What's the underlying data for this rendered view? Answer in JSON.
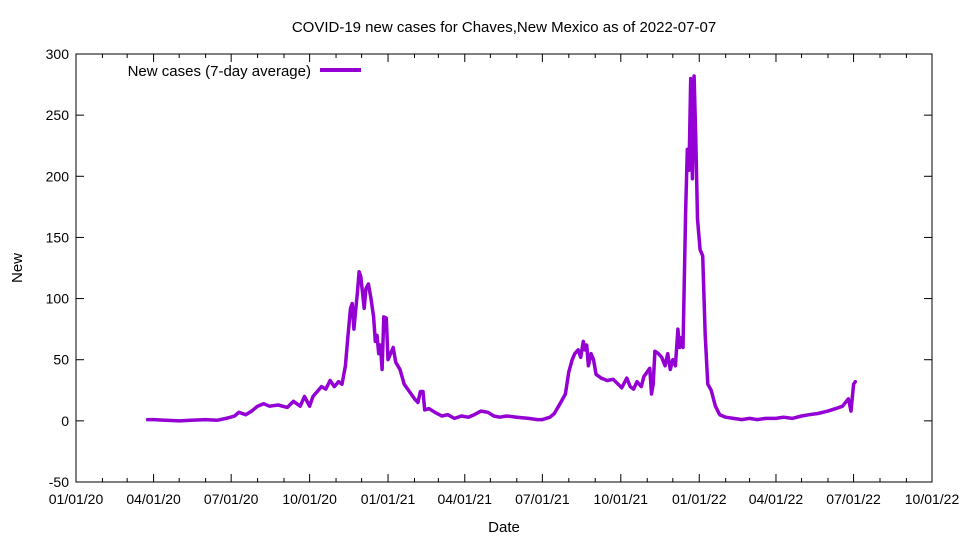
{
  "chart_data": {
    "type": "line",
    "title": "COVID-19 new cases for Chaves,New Mexico as of 2022-07-07",
    "xlabel": "Date",
    "ylabel": "New",
    "xlim": [
      "2020-01-01",
      "2022-10-01"
    ],
    "ylim": [
      -50,
      300
    ],
    "y_ticks": [
      -50,
      0,
      50,
      100,
      150,
      200,
      250,
      300
    ],
    "x_ticks": [
      {
        "date": "2020-01-01",
        "label": "01/01/20"
      },
      {
        "date": "2020-04-01",
        "label": "04/01/20"
      },
      {
        "date": "2020-07-01",
        "label": "07/01/20"
      },
      {
        "date": "2020-10-01",
        "label": "10/01/20"
      },
      {
        "date": "2021-01-01",
        "label": "01/01/21"
      },
      {
        "date": "2021-04-01",
        "label": "04/01/21"
      },
      {
        "date": "2021-07-01",
        "label": "07/01/21"
      },
      {
        "date": "2021-10-01",
        "label": "10/01/21"
      },
      {
        "date": "2022-01-01",
        "label": "01/01/22"
      },
      {
        "date": "2022-04-01",
        "label": "04/01/22"
      },
      {
        "date": "2022-07-01",
        "label": "07/01/22"
      },
      {
        "date": "2022-10-01",
        "label": "10/01/22"
      }
    ],
    "grid": false,
    "legend_position": "top-left",
    "series": [
      {
        "name": "New cases (7-day average)",
        "color": "#9400d3",
        "points": [
          [
            "2020-03-25",
            1
          ],
          [
            "2020-04-01",
            1
          ],
          [
            "2020-04-15",
            0.5
          ],
          [
            "2020-05-01",
            0
          ],
          [
            "2020-05-15",
            0.5
          ],
          [
            "2020-06-01",
            1
          ],
          [
            "2020-06-15",
            0.5
          ],
          [
            "2020-06-25",
            2
          ],
          [
            "2020-07-05",
            4
          ],
          [
            "2020-07-10",
            7
          ],
          [
            "2020-07-18",
            5
          ],
          [
            "2020-07-25",
            8
          ],
          [
            "2020-08-01",
            12
          ],
          [
            "2020-08-08",
            14
          ],
          [
            "2020-08-15",
            12
          ],
          [
            "2020-08-25",
            13
          ],
          [
            "2020-09-05",
            11
          ],
          [
            "2020-09-12",
            16
          ],
          [
            "2020-09-20",
            12
          ],
          [
            "2020-09-25",
            20
          ],
          [
            "2020-10-01",
            12
          ],
          [
            "2020-10-05",
            20
          ],
          [
            "2020-10-10",
            24
          ],
          [
            "2020-10-15",
            28
          ],
          [
            "2020-10-20",
            26
          ],
          [
            "2020-10-25",
            33
          ],
          [
            "2020-10-30",
            28
          ],
          [
            "2020-11-04",
            32
          ],
          [
            "2020-11-08",
            30
          ],
          [
            "2020-11-12",
            45
          ],
          [
            "2020-11-15",
            70
          ],
          [
            "2020-11-18",
            92
          ],
          [
            "2020-11-20",
            96
          ],
          [
            "2020-11-22",
            75
          ],
          [
            "2020-11-24",
            90
          ],
          [
            "2020-11-26",
            105
          ],
          [
            "2020-11-28",
            122
          ],
          [
            "2020-11-30",
            118
          ],
          [
            "2020-12-02",
            105
          ],
          [
            "2020-12-04",
            92
          ],
          [
            "2020-12-06",
            108
          ],
          [
            "2020-12-09",
            112
          ],
          [
            "2020-12-12",
            100
          ],
          [
            "2020-12-15",
            85
          ],
          [
            "2020-12-17",
            65
          ],
          [
            "2020-12-19",
            70
          ],
          [
            "2020-12-21",
            55
          ],
          [
            "2020-12-23",
            62
          ],
          [
            "2020-12-25",
            42
          ],
          [
            "2020-12-27",
            85
          ],
          [
            "2020-12-30",
            84
          ],
          [
            "2021-01-01",
            50
          ],
          [
            "2021-01-04",
            55
          ],
          [
            "2021-01-07",
            60
          ],
          [
            "2021-01-10",
            48
          ],
          [
            "2021-01-15",
            42
          ],
          [
            "2021-01-20",
            30
          ],
          [
            "2021-01-25",
            25
          ],
          [
            "2021-02-01",
            18
          ],
          [
            "2021-02-05",
            15
          ],
          [
            "2021-02-08",
            24
          ],
          [
            "2021-02-11",
            24
          ],
          [
            "2021-02-13",
            9
          ],
          [
            "2021-02-18",
            10
          ],
          [
            "2021-02-25",
            7
          ],
          [
            "2021-03-05",
            4
          ],
          [
            "2021-03-12",
            5
          ],
          [
            "2021-03-20",
            2
          ],
          [
            "2021-03-28",
            4
          ],
          [
            "2021-04-05",
            3
          ],
          [
            "2021-04-12",
            5
          ],
          [
            "2021-04-20",
            8
          ],
          [
            "2021-04-28",
            7
          ],
          [
            "2021-05-05",
            4
          ],
          [
            "2021-05-12",
            3
          ],
          [
            "2021-05-20",
            4
          ],
          [
            "2021-06-01",
            3
          ],
          [
            "2021-06-15",
            2
          ],
          [
            "2021-06-25",
            1
          ],
          [
            "2021-07-01",
            1
          ],
          [
            "2021-07-10",
            3
          ],
          [
            "2021-07-15",
            6
          ],
          [
            "2021-07-20",
            12
          ],
          [
            "2021-07-25",
            18
          ],
          [
            "2021-07-28",
            22
          ],
          [
            "2021-08-01",
            40
          ],
          [
            "2021-08-05",
            50
          ],
          [
            "2021-08-08",
            55
          ],
          [
            "2021-08-12",
            58
          ],
          [
            "2021-08-15",
            52
          ],
          [
            "2021-08-18",
            65
          ],
          [
            "2021-08-20",
            58
          ],
          [
            "2021-08-22",
            62
          ],
          [
            "2021-08-24",
            45
          ],
          [
            "2021-08-27",
            55
          ],
          [
            "2021-08-30",
            50
          ],
          [
            "2021-09-02",
            38
          ],
          [
            "2021-09-08",
            35
          ],
          [
            "2021-09-15",
            33
          ],
          [
            "2021-09-22",
            34
          ],
          [
            "2021-09-28",
            30
          ],
          [
            "2021-10-02",
            27
          ],
          [
            "2021-10-08",
            35
          ],
          [
            "2021-10-12",
            28
          ],
          [
            "2021-10-16",
            26
          ],
          [
            "2021-10-20",
            32
          ],
          [
            "2021-10-25",
            28
          ],
          [
            "2021-10-28",
            36
          ],
          [
            "2021-11-01",
            40
          ],
          [
            "2021-11-04",
            43
          ],
          [
            "2021-11-06",
            22
          ],
          [
            "2021-11-08",
            30
          ],
          [
            "2021-11-10",
            57
          ],
          [
            "2021-11-14",
            55
          ],
          [
            "2021-11-18",
            52
          ],
          [
            "2021-11-22",
            45
          ],
          [
            "2021-11-25",
            55
          ],
          [
            "2021-11-28",
            42
          ],
          [
            "2021-12-01",
            50
          ],
          [
            "2021-12-04",
            45
          ],
          [
            "2021-12-07",
            75
          ],
          [
            "2021-12-09",
            60
          ],
          [
            "2021-12-11",
            68
          ],
          [
            "2021-12-13",
            60
          ],
          [
            "2021-12-16",
            170
          ],
          [
            "2021-12-18",
            222
          ],
          [
            "2021-12-20",
            205
          ],
          [
            "2021-12-22",
            280
          ],
          [
            "2021-12-24",
            198
          ],
          [
            "2021-12-26",
            282
          ],
          [
            "2021-12-28",
            230
          ],
          [
            "2021-12-30",
            165
          ],
          [
            "2022-01-02",
            140
          ],
          [
            "2022-01-05",
            135
          ],
          [
            "2022-01-08",
            70
          ],
          [
            "2022-01-11",
            30
          ],
          [
            "2022-01-15",
            25
          ],
          [
            "2022-01-20",
            12
          ],
          [
            "2022-01-25",
            5
          ],
          [
            "2022-02-01",
            3
          ],
          [
            "2022-02-10",
            2
          ],
          [
            "2022-02-20",
            1
          ],
          [
            "2022-03-01",
            2
          ],
          [
            "2022-03-10",
            1
          ],
          [
            "2022-03-20",
            2
          ],
          [
            "2022-04-01",
            2
          ],
          [
            "2022-04-10",
            3
          ],
          [
            "2022-04-20",
            2
          ],
          [
            "2022-05-01",
            4
          ],
          [
            "2022-05-10",
            5
          ],
          [
            "2022-05-20",
            6
          ],
          [
            "2022-06-01",
            8
          ],
          [
            "2022-06-10",
            10
          ],
          [
            "2022-06-18",
            12
          ],
          [
            "2022-06-25",
            18
          ],
          [
            "2022-06-28",
            8
          ],
          [
            "2022-07-01",
            30
          ],
          [
            "2022-07-03",
            32
          ]
        ]
      }
    ]
  }
}
